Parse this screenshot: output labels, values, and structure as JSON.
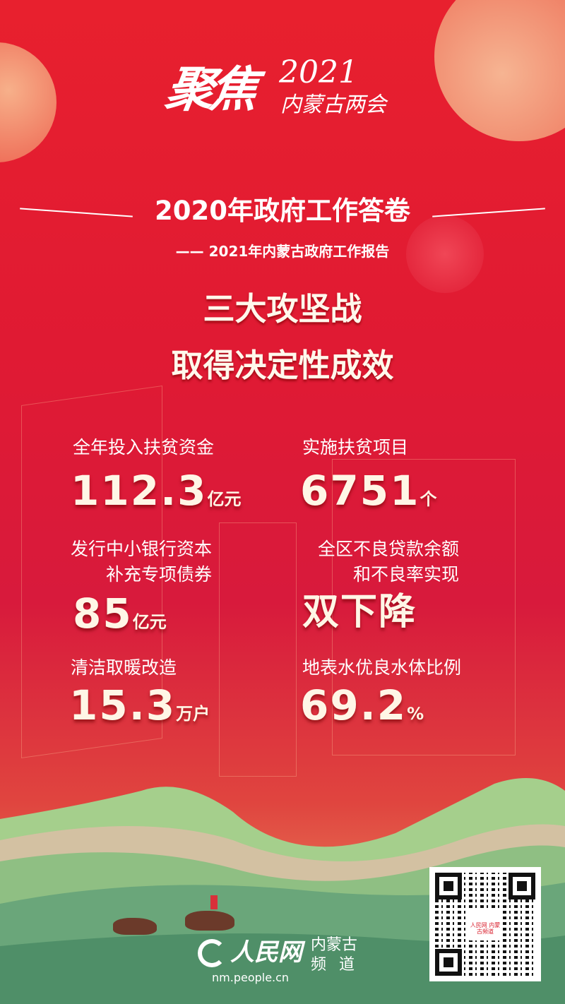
{
  "logo": {
    "text": "聚焦",
    "year": "2021",
    "sub": "内蒙古两会"
  },
  "title": "2020年政府工作答卷",
  "subtitle": "—— 2021年内蒙古政府工作报告",
  "headline": [
    "三大攻坚战",
    "取得决定性成效"
  ],
  "stats": [
    {
      "label": [
        "全年投入扶贫资金"
      ],
      "value": "112.3",
      "unit": "亿元"
    },
    {
      "label": [
        "实施扶贫项目"
      ],
      "value": "6751",
      "unit": "个"
    },
    {
      "label": [
        "发行中小银行资本",
        "补充专项债券"
      ],
      "value": "85",
      "unit": "亿元"
    },
    {
      "label": [
        "全区不良贷款余额",
        "和不良率实现"
      ],
      "value": "双下降",
      "unit": ""
    },
    {
      "label": [
        "清洁取暖改造"
      ],
      "value": "15.3",
      "unit": "万户"
    },
    {
      "label": [
        "地表水优良水体比例"
      ],
      "value": "69.2",
      "unit": "%"
    }
  ],
  "brand": {
    "name": "人民网",
    "channel_line1": "内蒙古",
    "channel_line2": "频道",
    "url": "nm.people.cn"
  },
  "qr": {
    "logo_text": "人民网 内蒙古频道"
  },
  "colors": {
    "background": "#e01a33",
    "hills": "#5e9a6e"
  }
}
